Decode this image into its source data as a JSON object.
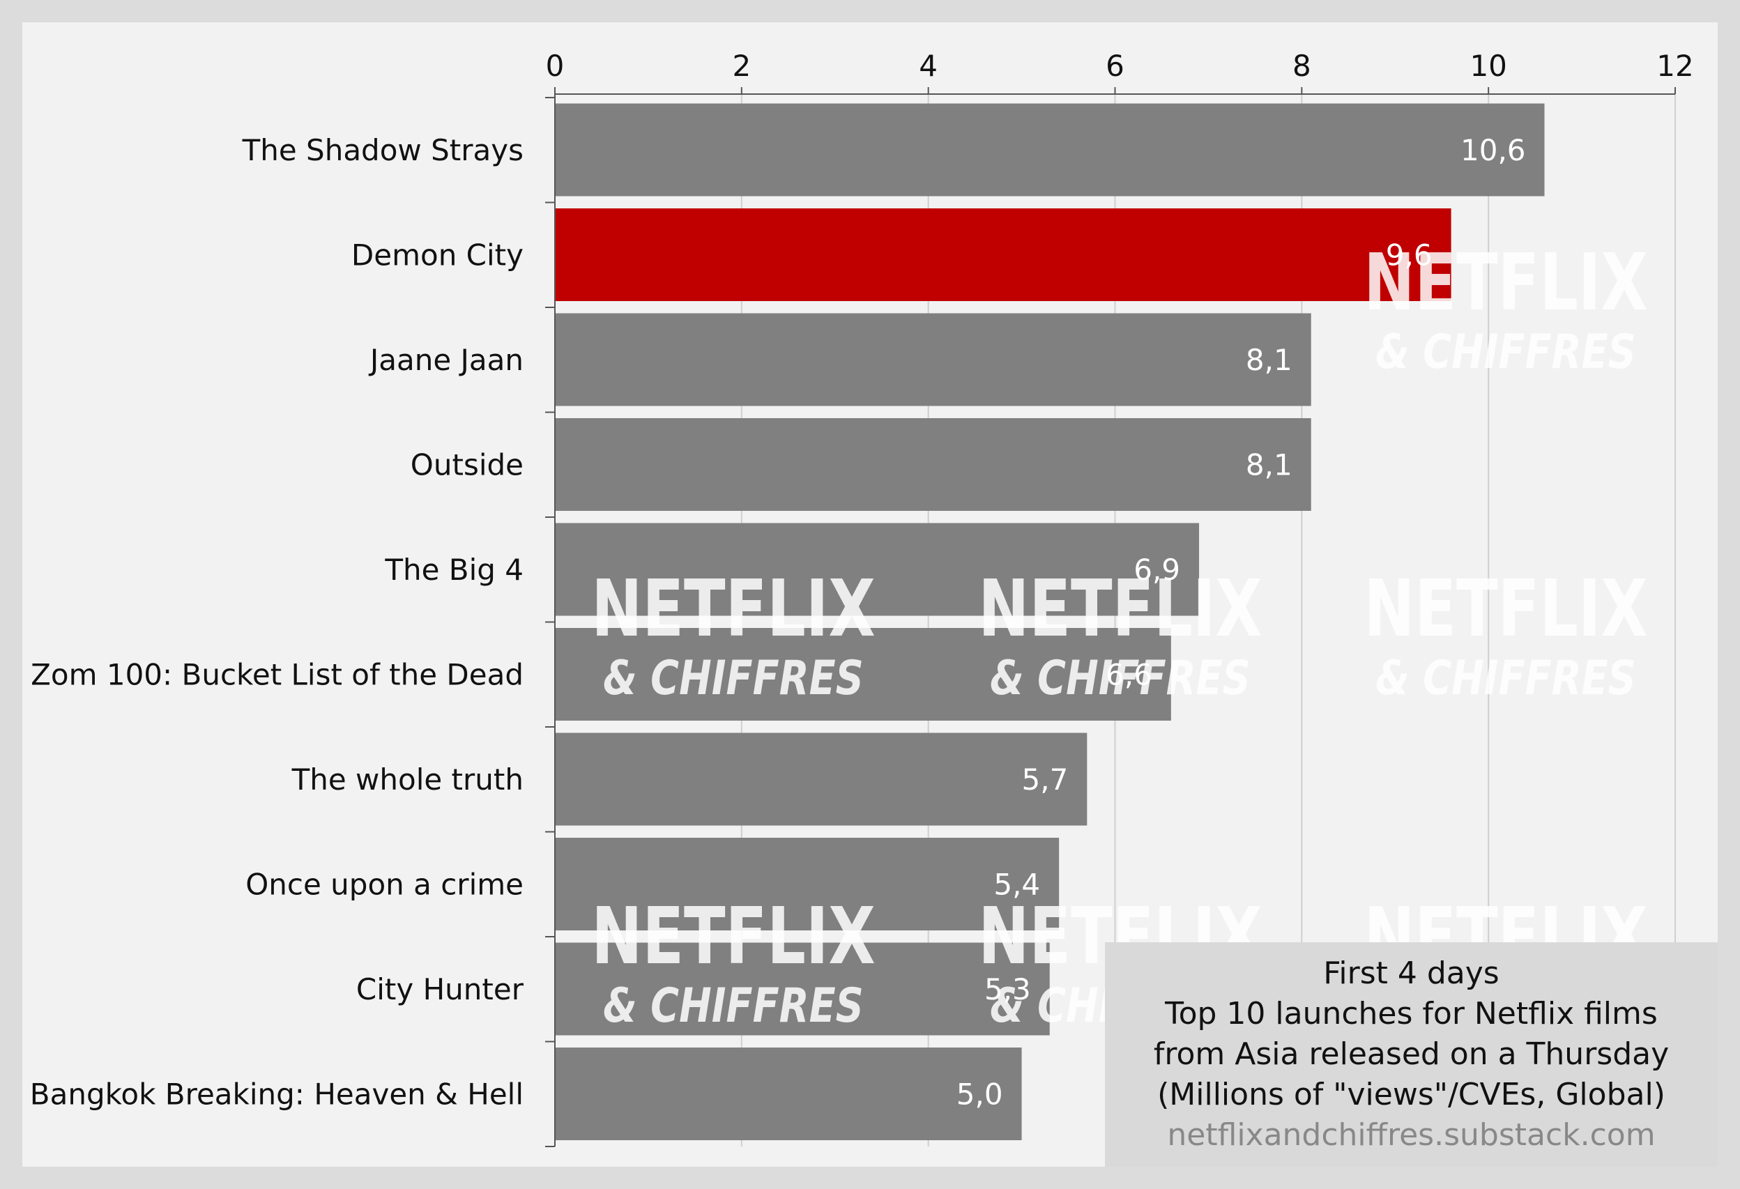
{
  "chart_data": {
    "type": "bar",
    "orientation": "horizontal",
    "categories": [
      "The Shadow Strays",
      "Demon City",
      "Jaane Jaan",
      "Outside",
      "The Big 4",
      "Zom 100: Bucket List of the Dead",
      "The whole truth",
      "Once upon a crime",
      "City Hunter",
      "Bangkok Breaking: Heaven & Hell"
    ],
    "values": [
      10.6,
      9.6,
      8.1,
      8.1,
      6.9,
      6.6,
      5.7,
      5.4,
      5.3,
      5.0
    ],
    "value_labels": [
      "10,6",
      "9,6",
      "8,1",
      "8,1",
      "6,9",
      "6,6",
      "5,7",
      "5,4",
      "5,3",
      "5,0"
    ],
    "highlight_index": 1,
    "xlim": [
      0,
      12
    ],
    "xticks": [
      0,
      2,
      4,
      6,
      8,
      10,
      12
    ],
    "xaxis_position": "top",
    "grid": true,
    "colors": {
      "bar": "#808080",
      "highlight": "#c00000",
      "value_label": "#ffffff",
      "grid": "#cfcfcf",
      "watermark": "#ffffff"
    },
    "caption": {
      "line1": "First 4 days",
      "line2": "Top 10 launches for Netflix films",
      "line3": "from Asia released on a Thursday",
      "line4": "(Millions of \"views\"/CVEs, Global)",
      "source": "netflixandchiffres.substack.com"
    },
    "watermark": {
      "line1": "NETFLIX",
      "line2": "& CHIFFRES"
    }
  }
}
